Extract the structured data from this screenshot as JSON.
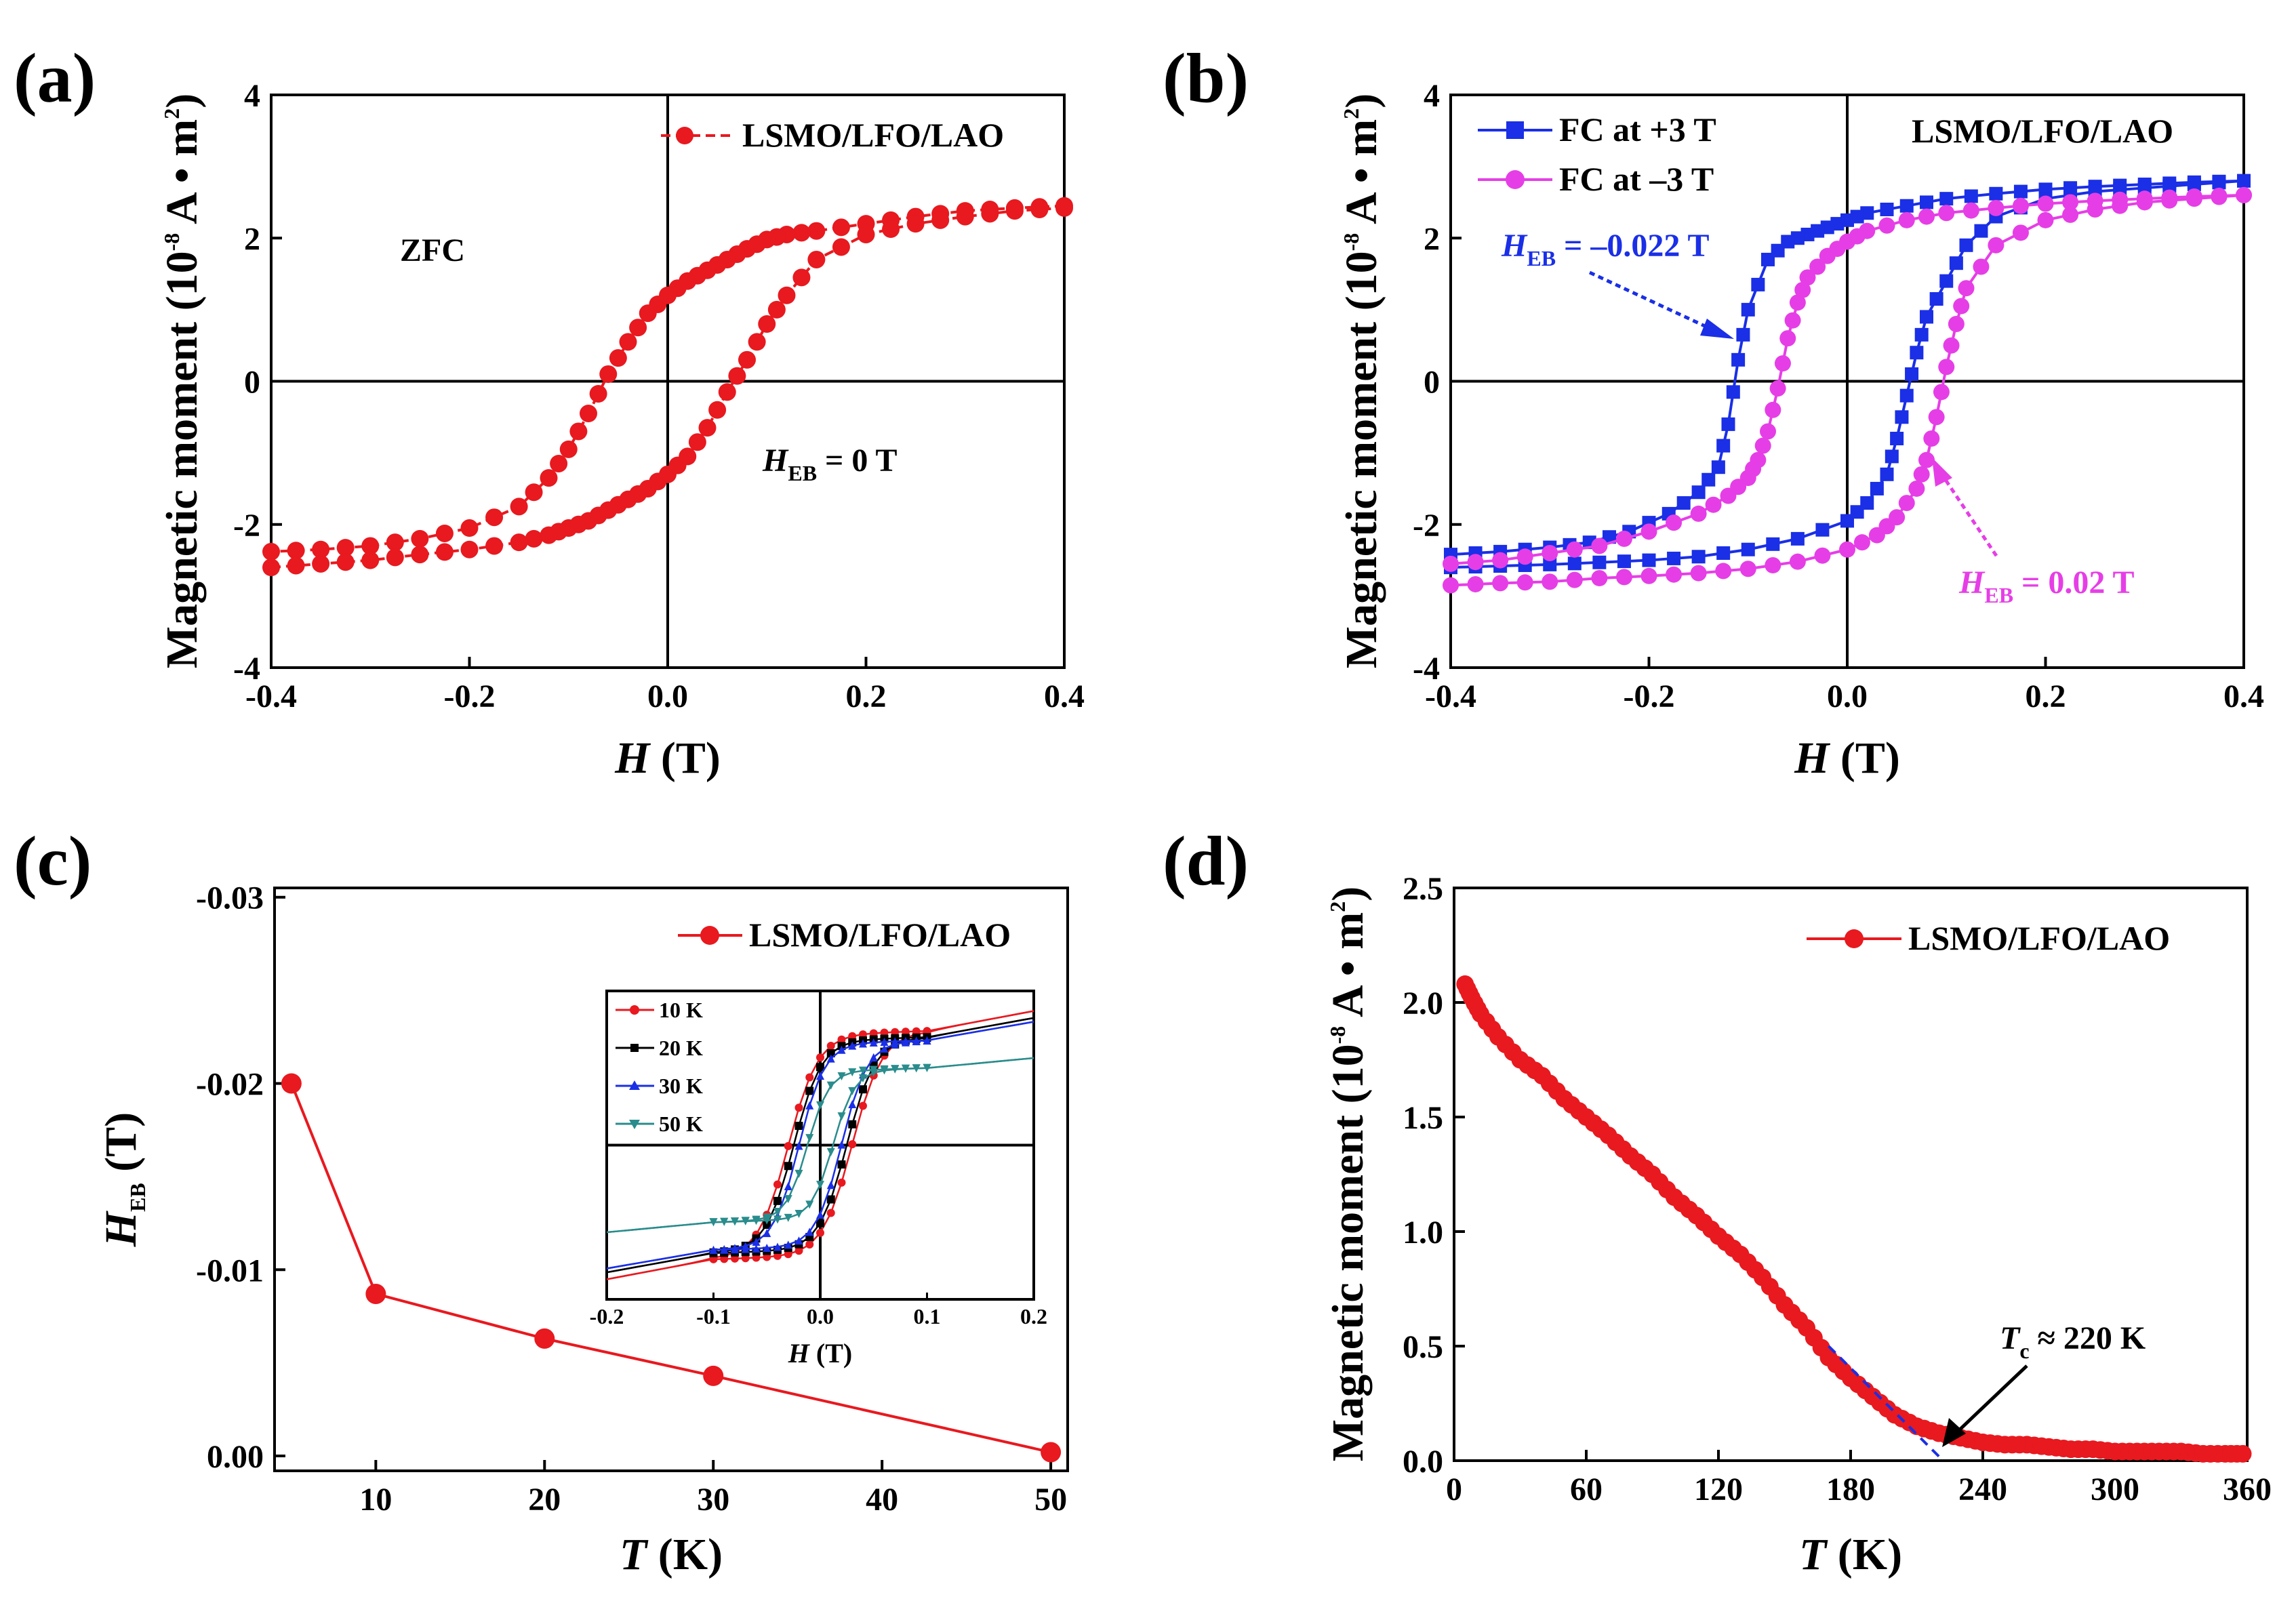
{
  "figure": {
    "panels": [
      "(a)",
      "(b)",
      "(c)",
      "(d)"
    ],
    "colors": {
      "red": "#e8191f",
      "blue": "#1a2fe6",
      "magenta": "#e63ee6",
      "black": "#000000",
      "darkred": "#b5161c",
      "teal": "#2a8c8c"
    }
  },
  "chart_data": [
    {
      "id": "a",
      "type": "line",
      "title": "(a)",
      "xlabel_var": "H",
      "xlabel_unit": "(T)",
      "ylabel": "Magnetic moment (10",
      "ylabel_exp": "-8",
      "ylabel_unit": " A • m",
      "ylabel_exp2": "2",
      "ylabel_close": ")",
      "xlim": [
        -0.4,
        0.4
      ],
      "ylim": [
        -4,
        4
      ],
      "xticks": [
        -0.4,
        -0.2,
        0.0,
        0.2,
        0.4
      ],
      "xtick_labels": [
        "-0.4",
        "-0.2",
        "0.0",
        "0.2",
        "0.4"
      ],
      "yticks": [
        -4,
        -2,
        0,
        2,
        4
      ],
      "ytick_labels": [
        "-4",
        "-2",
        "0",
        "2",
        "4"
      ],
      "legend": [
        "LSMO/LFO/LAO"
      ],
      "annotations": {
        "zfc": "ZFC",
        "heb_var": "H",
        "heb_sub": "EB",
        "heb_val": " = 0 T"
      },
      "series": [
        {
          "name": "LSMO/LFO/LAO",
          "color": "#e8191f",
          "descending": {
            "x": [
              0.4,
              0.35,
              0.3,
              0.25,
              0.2,
              0.15,
              0.12,
              0.1,
              0.08,
              0.06,
              0.04,
              0.02,
              0.0,
              -0.02,
              -0.04,
              -0.06,
              -0.08,
              -0.1,
              -0.12,
              -0.15,
              -0.2,
              -0.25,
              -0.3,
              -0.35,
              -0.4
            ],
            "y": [
              2.45,
              2.42,
              2.38,
              2.3,
              2.2,
              2.1,
              2.05,
              1.98,
              1.85,
              1.7,
              1.55,
              1.4,
              1.2,
              0.95,
              0.55,
              0.1,
              -0.45,
              -0.95,
              -1.35,
              -1.75,
              -2.05,
              -2.2,
              -2.3,
              -2.35,
              -2.38
            ]
          },
          "ascending": {
            "x": [
              -0.4,
              -0.35,
              -0.3,
              -0.25,
              -0.2,
              -0.15,
              -0.12,
              -0.1,
              -0.08,
              -0.06,
              -0.04,
              -0.02,
              0.0,
              0.02,
              0.04,
              0.06,
              0.08,
              0.1,
              0.12,
              0.15,
              0.2,
              0.25,
              0.3,
              0.35,
              0.4
            ],
            "y": [
              -2.6,
              -2.55,
              -2.5,
              -2.42,
              -2.35,
              -2.25,
              -2.15,
              -2.05,
              -1.95,
              -1.8,
              -1.65,
              -1.5,
              -1.3,
              -1.05,
              -0.65,
              -0.15,
              0.3,
              0.8,
              1.2,
              1.7,
              2.05,
              2.2,
              2.3,
              2.38,
              2.42
            ]
          }
        }
      ]
    },
    {
      "id": "b",
      "type": "line",
      "title": "(b)",
      "xlabel_var": "H",
      "xlabel_unit": "(T)",
      "ylabel": "Magnetic moment (10",
      "ylabel_exp": "-8",
      "ylabel_unit": " A • m",
      "ylabel_exp2": "2",
      "ylabel_close": ")",
      "xlim": [
        -0.4,
        0.4
      ],
      "ylim": [
        -4,
        4
      ],
      "xticks": [
        -0.4,
        -0.2,
        0.0,
        0.2,
        0.4
      ],
      "xtick_labels": [
        "-0.4",
        "-0.2",
        "0.0",
        "0.2",
        "0.4"
      ],
      "yticks": [
        -4,
        -2,
        0,
        2,
        4
      ],
      "ytick_labels": [
        "-4",
        "-2",
        "0",
        "2",
        "4"
      ],
      "legend": [
        "FC at  +3 T",
        "FC at –3 T"
      ],
      "sample_label": "LSMO/LFO/LAO",
      "annotations": {
        "heb1_var": "H",
        "heb1_sub": "EB",
        "heb1_val": " = –0.022 T",
        "heb2_var": "H",
        "heb2_sub": "EB",
        "heb2_val": " = 0.02 T"
      },
      "series": [
        {
          "name": "FC at  +3 T",
          "color": "#1a2fe6",
          "descending": {
            "x": [
              0.4,
              0.35,
              0.3,
              0.25,
              0.2,
              0.15,
              0.1,
              0.06,
              0.02,
              0.0,
              -0.02,
              -0.04,
              -0.06,
              -0.08,
              -0.1,
              -0.11,
              -0.12,
              -0.13,
              -0.15,
              -0.18,
              -0.22,
              -0.26,
              -0.3,
              -0.35,
              -0.4
            ],
            "y": [
              2.8,
              2.78,
              2.75,
              2.72,
              2.68,
              2.62,
              2.55,
              2.45,
              2.35,
              2.25,
              2.15,
              2.05,
              1.95,
              1.7,
              1.0,
              0.3,
              -0.6,
              -1.2,
              -1.55,
              -1.85,
              -2.1,
              -2.25,
              -2.32,
              -2.38,
              -2.42
            ]
          },
          "ascending": {
            "x": [
              -0.4,
              -0.35,
              -0.3,
              -0.25,
              -0.2,
              -0.15,
              -0.1,
              -0.05,
              0.0,
              0.02,
              0.04,
              0.05,
              0.06,
              0.07,
              0.08,
              0.1,
              0.12,
              0.15,
              0.2,
              0.25,
              0.3,
              0.35,
              0.4
            ],
            "y": [
              -2.6,
              -2.58,
              -2.56,
              -2.53,
              -2.5,
              -2.45,
              -2.35,
              -2.2,
              -1.95,
              -1.7,
              -1.3,
              -0.8,
              -0.2,
              0.4,
              0.9,
              1.4,
              1.9,
              2.3,
              2.55,
              2.65,
              2.7,
              2.75,
              2.8
            ]
          }
        },
        {
          "name": "FC at –3 T",
          "color": "#e63ee6",
          "descending": {
            "x": [
              0.4,
              0.35,
              0.3,
              0.25,
              0.2,
              0.15,
              0.1,
              0.06,
              0.02,
              0.0,
              -0.02,
              -0.04,
              -0.05,
              -0.06,
              -0.07,
              -0.08,
              -0.09,
              -0.1,
              -0.12,
              -0.15,
              -0.2,
              -0.25,
              -0.3,
              -0.35,
              -0.4
            ],
            "y": [
              2.6,
              2.58,
              2.55,
              2.52,
              2.48,
              2.42,
              2.35,
              2.25,
              2.1,
              1.95,
              1.75,
              1.45,
              1.1,
              0.6,
              -0.1,
              -0.7,
              -1.1,
              -1.35,
              -1.6,
              -1.85,
              -2.1,
              -2.3,
              -2.4,
              -2.5,
              -2.55
            ]
          },
          "ascending": {
            "x": [
              -0.4,
              -0.35,
              -0.3,
              -0.25,
              -0.2,
              -0.15,
              -0.1,
              -0.05,
              0.0,
              0.03,
              0.05,
              0.07,
              0.08,
              0.09,
              0.1,
              0.11,
              0.12,
              0.15,
              0.2,
              0.25,
              0.3,
              0.35,
              0.4
            ],
            "y": [
              -2.85,
              -2.82,
              -2.8,
              -2.75,
              -2.72,
              -2.68,
              -2.62,
              -2.52,
              -2.35,
              -2.15,
              -1.9,
              -1.5,
              -1.1,
              -0.5,
              0.2,
              0.8,
              1.3,
              1.9,
              2.25,
              2.4,
              2.5,
              2.55,
              2.6
            ]
          }
        }
      ]
    },
    {
      "id": "c",
      "type": "line",
      "title": "(c)",
      "xlabel_var": "T",
      "xlabel_unit": "(K)",
      "ylabel_var": "H",
      "ylabel_sub": "EB",
      "ylabel_unit": " (T)",
      "xlim": [
        4,
        51
      ],
      "ylim": [
        0.0008,
        -0.0305
      ],
      "xticks": [
        10,
        20,
        30,
        40,
        50
      ],
      "xtick_labels": [
        "10",
        "20",
        "30",
        "40",
        "50"
      ],
      "yticks": [
        0.0,
        -0.01,
        -0.02,
        -0.03
      ],
      "ytick_labels": [
        "0.00",
        "-0.01",
        "-0.02",
        "-0.03"
      ],
      "legend": [
        "LSMO/LFO/LAO"
      ],
      "series": [
        {
          "name": "LSMO/LFO/LAO",
          "color": "#e8191f",
          "x": [
            5,
            10,
            20,
            30,
            50
          ],
          "y": [
            -0.02,
            -0.0087,
            -0.0063,
            -0.0043,
            -0.0002
          ]
        }
      ],
      "inset": {
        "xlabel_var": "H",
        "xlabel_unit": "(T)",
        "xlim": [
          -0.2,
          0.2
        ],
        "ylim": [
          -1,
          1
        ],
        "xticks": [
          -0.2,
          -0.1,
          0.0,
          0.1,
          0.2
        ],
        "xtick_labels": [
          "-0.2",
          "-0.1",
          "0.0",
          "0.1",
          "0.2"
        ],
        "legend": [
          "10 K",
          "20 K",
          "30 K",
          "50 K"
        ],
        "series": [
          {
            "name": "10 K",
            "color": "#e8191f",
            "hc": 0.03,
            "ms": 0.72,
            "slope": 1.1,
            "w": 0.028
          },
          {
            "name": "20 K",
            "color": "#000000",
            "hc": 0.025,
            "ms": 0.68,
            "slope": 1.05,
            "w": 0.026
          },
          {
            "name": "30 K",
            "color": "#1a2fe6",
            "hc": 0.02,
            "ms": 0.66,
            "slope": 1.0,
            "w": 0.024
          },
          {
            "name": "50 K",
            "color": "#2a8c8c",
            "hc": 0.012,
            "ms": 0.48,
            "slope": 0.45,
            "w": 0.02
          }
        ]
      }
    },
    {
      "id": "d",
      "type": "line",
      "title": "(d)",
      "xlabel_var": "T",
      "xlabel_unit": "(K)",
      "ylabel": "Magnetic moment (10",
      "ylabel_exp": "-8",
      "ylabel_unit": " A • m",
      "ylabel_exp2": "2",
      "ylabel_close": ")",
      "xlim": [
        0,
        360
      ],
      "ylim": [
        0,
        2.5
      ],
      "xticks": [
        0,
        60,
        120,
        180,
        240,
        300,
        360
      ],
      "xtick_labels": [
        "0",
        "60",
        "120",
        "180",
        "240",
        "300",
        "360"
      ],
      "yticks": [
        0.0,
        0.5,
        1.0,
        1.5,
        2.0,
        2.5
      ],
      "ytick_labels": [
        "0.0",
        "0.5",
        "1.0",
        "1.5",
        "2.0",
        "2.5"
      ],
      "legend": [
        "LSMO/LFO/LAO"
      ],
      "annotations": {
        "tc_var": "T",
        "tc_sub": "c",
        "tc_val": " ≈ 220 K"
      },
      "tangent": {
        "x": [
          170,
          222
        ],
        "y": [
          0.5,
          0.0
        ]
      },
      "series": [
        {
          "name": "LSMO/LFO/LAO",
          "color": "#e8191f",
          "x": [
            5,
            8,
            12,
            20,
            30,
            40,
            50,
            60,
            70,
            80,
            90,
            100,
            110,
            120,
            130,
            140,
            150,
            160,
            170,
            180,
            190,
            200,
            210,
            220,
            230,
            240,
            250,
            260,
            270,
            280,
            290,
            300,
            310,
            320,
            330,
            340,
            350,
            358
          ],
          "y": [
            2.08,
            2.02,
            1.95,
            1.85,
            1.75,
            1.68,
            1.58,
            1.5,
            1.42,
            1.33,
            1.25,
            1.15,
            1.07,
            0.98,
            0.9,
            0.8,
            0.68,
            0.58,
            0.45,
            0.36,
            0.28,
            0.2,
            0.15,
            0.12,
            0.1,
            0.08,
            0.07,
            0.07,
            0.06,
            0.05,
            0.05,
            0.04,
            0.04,
            0.04,
            0.04,
            0.03,
            0.03,
            0.03
          ]
        }
      ]
    }
  ]
}
